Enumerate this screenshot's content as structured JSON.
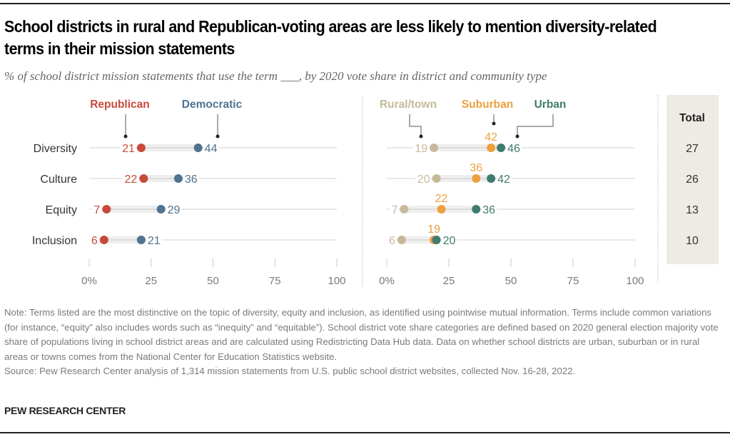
{
  "title": "School districts in rural and Republican-voting areas are less likely to mention diversity-related terms in their mission statements",
  "subtitle": "% of school district mission statements that use the term ___, by 2020 vote share in district and community type",
  "colors": {
    "republican": "#C94A3B",
    "democratic": "#4F7390",
    "rural": "#C6B99A",
    "suburban": "#EDA03D",
    "urban": "#3F7B6E",
    "total_panel": "#EEEBE5"
  },
  "chart_data": [
    {
      "type": "dot-range",
      "panel": "vote-share",
      "categories": [
        "Diversity",
        "Culture",
        "Equity",
        "Inclusion"
      ],
      "series": [
        {
          "name": "Republican",
          "key": "republican",
          "values": [
            21,
            22,
            7,
            6
          ]
        },
        {
          "name": "Democratic",
          "key": "democratic",
          "values": [
            44,
            36,
            29,
            21
          ]
        }
      ],
      "xlim": [
        0,
        100
      ],
      "xticks": [
        0,
        25,
        50,
        75,
        100
      ],
      "xtick_labels": [
        "0%",
        "25",
        "50",
        "75",
        "100"
      ],
      "legend": "top (labels with leader lines to first row)"
    },
    {
      "type": "dot-range",
      "panel": "community-type",
      "categories": [
        "Diversity",
        "Culture",
        "Equity",
        "Inclusion"
      ],
      "series": [
        {
          "name": "Rural/town",
          "key": "rural",
          "values": [
            19,
            20,
            7,
            6
          ]
        },
        {
          "name": "Suburban",
          "key": "suburban",
          "values": [
            42,
            36,
            22,
            19
          ]
        },
        {
          "name": "Urban",
          "key": "urban",
          "values": [
            46,
            42,
            36,
            20
          ]
        }
      ],
      "xlim": [
        0,
        100
      ],
      "xticks": [
        0,
        25,
        50,
        75,
        100
      ],
      "xtick_labels": [
        "0%",
        "25",
        "50",
        "75",
        "100"
      ],
      "legend": "top (labels with leader lines to first row)"
    },
    {
      "type": "table",
      "panel": "total",
      "header": "Total",
      "categories": [
        "Diversity",
        "Culture",
        "Equity",
        "Inclusion"
      ],
      "values": [
        27,
        26,
        13,
        10
      ]
    }
  ],
  "note": "Note: Terms listed are the most distinctive on the topic of diversity, equity and inclusion, as identified using pointwise mutual information. Terms include common variations (for instance, “equity” also includes words such as “inequity” and “equitable”). School district vote share categories are defined based on 2020 general election majority vote share of populations living in school district areas and are calculated using Redistricting Data Hub data. Data on whether school districts are urban, suburban or in rural areas or towns comes from the National Center for Education Statistics website.",
  "source": "Source: Pew Research Center analysis of 1,314 mission statements from U.S. public school district websites, collected Nov. 16-28, 2022.",
  "brand": "PEW RESEARCH CENTER"
}
